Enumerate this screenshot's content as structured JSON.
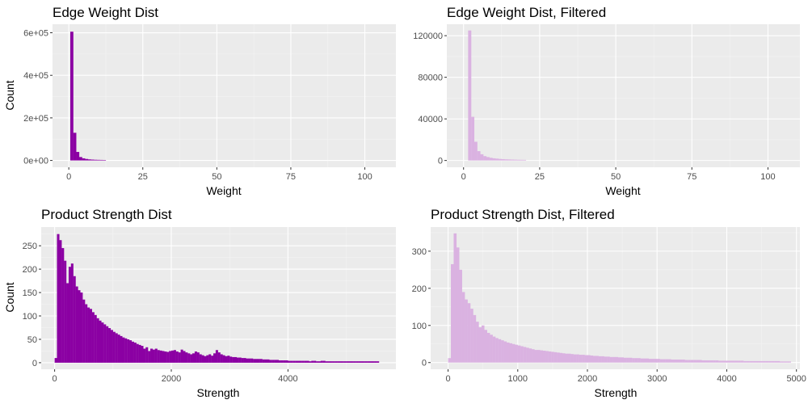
{
  "chart_data": [
    {
      "id": "edge",
      "type": "histogram",
      "title": "Edge Weight Dist",
      "xlabel": "Weight",
      "ylabel": "Count",
      "fill": "#8B00A3",
      "xlim": [
        -5.5,
        110.5
      ],
      "ylim": [
        -32000,
        640000
      ],
      "xticks": [
        0,
        25,
        50,
        75,
        100
      ],
      "xtick_labels": [
        "0",
        "25",
        "50",
        "75",
        "100"
      ],
      "yticks": [
        0,
        200000,
        400000,
        600000
      ],
      "ytick_labels": [
        "0e+00",
        "2e+05",
        "4e+05",
        "6e+05"
      ],
      "bins": [
        {
          "x0": 0.5,
          "x1": 1.5,
          "count": 605000
        },
        {
          "x0": 1.5,
          "x1": 2.5,
          "count": 130000
        },
        {
          "x0": 2.5,
          "x1": 3.5,
          "count": 40000
        },
        {
          "x0": 3.5,
          "x1": 4.5,
          "count": 16000
        },
        {
          "x0": 4.5,
          "x1": 5.5,
          "count": 10000
        },
        {
          "x0": 5.5,
          "x1": 6.5,
          "count": 7000
        },
        {
          "x0": 6.5,
          "x1": 7.5,
          "count": 5000
        },
        {
          "x0": 7.5,
          "x1": 8.5,
          "count": 4000
        },
        {
          "x0": 8.5,
          "x1": 9.5,
          "count": 3200
        },
        {
          "x0": 9.5,
          "x1": 10.5,
          "count": 2800
        },
        {
          "x0": 10.5,
          "x1": 11.5,
          "count": 2500
        },
        {
          "x0": 11.5,
          "x1": 12.5,
          "count": 2200
        }
      ]
    },
    {
      "id": "edgef",
      "type": "histogram",
      "title": "Edge Weight Dist, Filtered",
      "xlabel": "Weight",
      "ylabel": "",
      "fill": "#DAB2E1",
      "xlim": [
        -5.5,
        110.5
      ],
      "ylim": [
        -6500,
        131000
      ],
      "xticks": [
        0,
        25,
        50,
        75,
        100
      ],
      "xtick_labels": [
        "0",
        "25",
        "50",
        "75",
        "100"
      ],
      "yticks": [
        0,
        40000,
        80000,
        120000
      ],
      "ytick_labels": [
        "0",
        "40000",
        "80000",
        "120000"
      ],
      "bins": [
        {
          "x0": 1.5,
          "x1": 2.5,
          "count": 125000
        },
        {
          "x0": 2.5,
          "x1": 3.5,
          "count": 42000
        },
        {
          "x0": 3.5,
          "x1": 4.5,
          "count": 18000
        },
        {
          "x0": 4.5,
          "x1": 5.5,
          "count": 9000
        },
        {
          "x0": 5.5,
          "x1": 6.5,
          "count": 6000
        },
        {
          "x0": 6.5,
          "x1": 7.5,
          "count": 4200
        },
        {
          "x0": 7.5,
          "x1": 8.5,
          "count": 3300
        },
        {
          "x0": 8.5,
          "x1": 9.5,
          "count": 2600
        },
        {
          "x0": 9.5,
          "x1": 10.5,
          "count": 2100
        },
        {
          "x0": 10.5,
          "x1": 11.5,
          "count": 1800
        },
        {
          "x0": 11.5,
          "x1": 12.5,
          "count": 1500
        },
        {
          "x0": 12.5,
          "x1": 13.5,
          "count": 1300
        },
        {
          "x0": 13.5,
          "x1": 14.5,
          "count": 1100
        },
        {
          "x0": 14.5,
          "x1": 15.5,
          "count": 1000
        },
        {
          "x0": 15.5,
          "x1": 16.5,
          "count": 900
        },
        {
          "x0": 16.5,
          "x1": 17.5,
          "count": 800
        },
        {
          "x0": 17.5,
          "x1": 18.5,
          "count": 700
        },
        {
          "x0": 18.5,
          "x1": 19.5,
          "count": 650
        },
        {
          "x0": 19.5,
          "x1": 20.5,
          "count": 600
        }
      ]
    },
    {
      "id": "strength",
      "type": "histogram",
      "title": "Product Strength Dist",
      "xlabel": "Strength",
      "ylabel": "Count",
      "fill": "#8B00A3",
      "xlim": [
        -230,
        5850
      ],
      "ylim": [
        -14,
        290
      ],
      "xticks": [
        0,
        2000,
        4000
      ],
      "xtick_labels": [
        "0",
        "2000",
        "4000"
      ],
      "yticks": [
        0,
        50,
        100,
        150,
        200,
        250
      ],
      "ytick_labels": [
        "0",
        "50",
        "100",
        "150",
        "200",
        "250"
      ],
      "bin_start": 0,
      "bin_width": 40,
      "counts": [
        10,
        275,
        262,
        245,
        218,
        170,
        205,
        212,
        185,
        163,
        155,
        150,
        135,
        125,
        118,
        115,
        108,
        102,
        95,
        90,
        86,
        82,
        78,
        74,
        70,
        66,
        63,
        60,
        57,
        54,
        52,
        50,
        48,
        45,
        43,
        40,
        38,
        36,
        30,
        33,
        25,
        30,
        28,
        30,
        27,
        26,
        25,
        24,
        23,
        25,
        26,
        27,
        24,
        22,
        28,
        25,
        22,
        20,
        18,
        20,
        24,
        22,
        18,
        16,
        14,
        16,
        18,
        15,
        20,
        27,
        22,
        18,
        16,
        14,
        15,
        13,
        12,
        12,
        11,
        11,
        10,
        10,
        9,
        9,
        9,
        8,
        8,
        8,
        8,
        7,
        7,
        7,
        6,
        6,
        6,
        6,
        5,
        5,
        5,
        5,
        4,
        4,
        4,
        4,
        4,
        4,
        4,
        4,
        4,
        3,
        4,
        4,
        3,
        3,
        4,
        4,
        3,
        3,
        3,
        3,
        3,
        3,
        3,
        3,
        3,
        3,
        3,
        3,
        3,
        3,
        3,
        3,
        3,
        3,
        3,
        3,
        3,
        3,
        3
      ]
    },
    {
      "id": "strengthf",
      "type": "histogram",
      "title": "Product Strength Dist, Filtered",
      "xlabel": "Strength",
      "ylabel": "",
      "fill": "#DAB2E1",
      "xlim": [
        -250,
        5050
      ],
      "ylim": [
        -18,
        365
      ],
      "xticks": [
        0,
        1000,
        2000,
        3000,
        4000,
        5000
      ],
      "xtick_labels": [
        "0",
        "1000",
        "2000",
        "3000",
        "4000",
        "5000"
      ],
      "yticks": [
        0,
        100,
        200,
        300
      ],
      "ytick_labels": [
        "0",
        "100",
        "200",
        "300"
      ],
      "bin_start": 0,
      "bin_width": 40,
      "counts": [
        12,
        265,
        348,
        310,
        250,
        190,
        170,
        160,
        145,
        128,
        110,
        95,
        100,
        88,
        80,
        75,
        70,
        66,
        63,
        60,
        57,
        54,
        52,
        50,
        48,
        46,
        44,
        42,
        40,
        38,
        36,
        34,
        34,
        33,
        32,
        31,
        30,
        29,
        28,
        27,
        26,
        25,
        24,
        24,
        23,
        22,
        22,
        21,
        21,
        20,
        20,
        19,
        18,
        18,
        17,
        17,
        16,
        16,
        15,
        15,
        15,
        14,
        14,
        13,
        13,
        13,
        12,
        12,
        12,
        11,
        11,
        11,
        10,
        10,
        10,
        10,
        9,
        9,
        9,
        9,
        8,
        8,
        8,
        8,
        8,
        7,
        7,
        7,
        7,
        7,
        7,
        6,
        6,
        6,
        6,
        6,
        6,
        5,
        5,
        5,
        5,
        5,
        5,
        5,
        5,
        5,
        4,
        4,
        4,
        4,
        4,
        4,
        4,
        4,
        4,
        4,
        4,
        4,
        4,
        3,
        3,
        3,
        3
      ]
    }
  ]
}
